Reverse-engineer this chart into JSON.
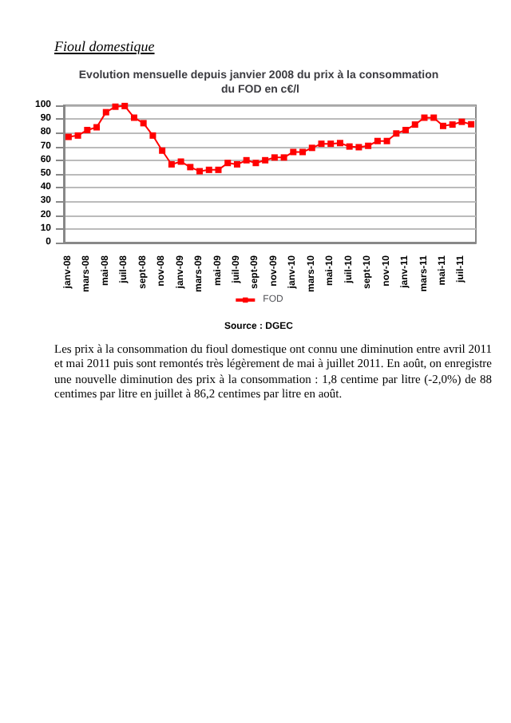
{
  "chart_data": {
    "type": "line",
    "title": "Evolution mensuelle depuis janvier 2008 du prix à la consommation du FOD en c€/l",
    "categories": [
      "janv-08",
      null,
      "mars-08",
      null,
      "mai-08",
      null,
      "juil-08",
      null,
      "sept-08",
      null,
      "nov-08",
      null,
      "janv-09",
      null,
      "mars-09",
      null,
      "mai-09",
      null,
      "juil-09",
      null,
      "sept-09",
      null,
      "nov-09",
      null,
      "janv-10",
      null,
      "mars-10",
      null,
      "mai-10",
      null,
      "juil-10",
      null,
      "sept-10",
      null,
      "nov-10",
      null,
      "janv-11",
      null,
      "mars-11",
      null,
      "mai-11",
      null,
      "juil-11",
      null
    ],
    "series": [
      {
        "name": "FOD",
        "color": "#ff0000",
        "values": [
          77,
          78,
          82,
          84,
          95,
          99,
          99.5,
          91,
          87,
          78,
          67,
          57,
          59,
          55,
          52,
          53,
          53,
          58,
          57,
          60,
          58,
          60,
          62,
          62,
          66,
          66,
          69,
          72,
          72,
          72.5,
          70,
          69.5,
          70.5,
          74,
          74,
          79.5,
          82,
          86,
          91,
          91,
          85,
          86,
          88,
          86.2
        ]
      }
    ],
    "ylim": [
      0,
      100
    ],
    "yticks": [
      0,
      10,
      20,
      30,
      40,
      50,
      60,
      70,
      80,
      90,
      100
    ],
    "grid": "y",
    "legend": "bottom",
    "marker": "square",
    "line_style": "solid",
    "annotations": [
      "Fioul domestique",
      "Source : DGEC",
      "Les prix à la consommation du fioul domestique ont connu une diminution entre avril 2011 et mai 2011 puis sont remontés très légèrement de mai à juillet 2011. En août, on enregistre une nouvelle diminution des prix à la consommation : 1,8 centime par litre (-2,0%) de 88 centimes par litre en juillet à 86,2 centimes par litre en août."
    ]
  }
}
